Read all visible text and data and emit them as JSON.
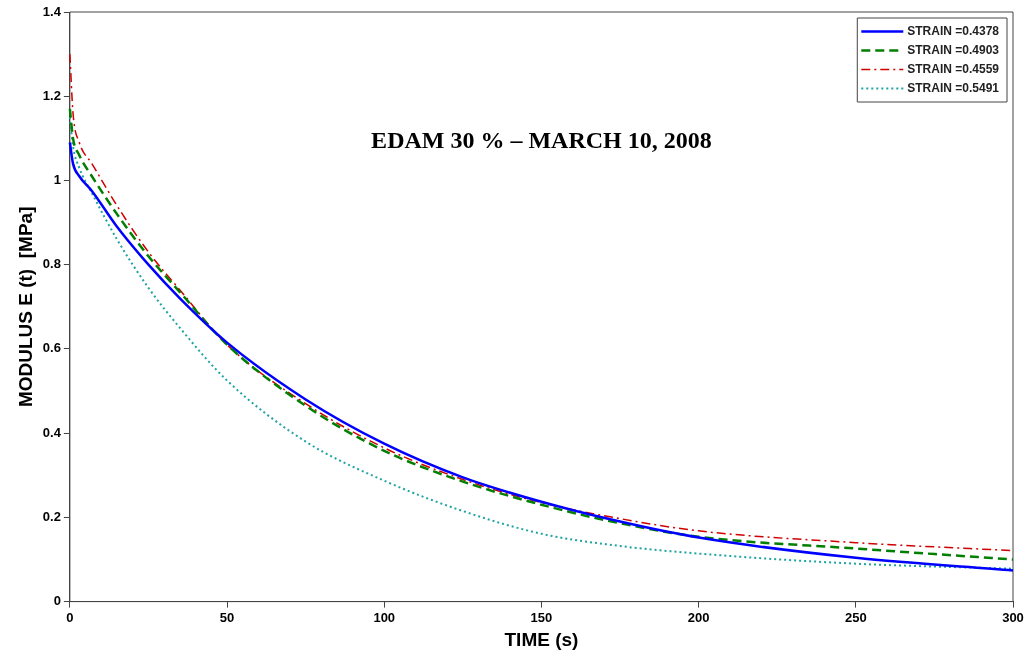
{
  "chart_data": {
    "type": "line",
    "title": "EDAM 30 % – MARCH 10, 2008",
    "xlabel": "TIME (s)",
    "ylabel": "MODULUS E (t)  [MPa]",
    "x": [
      0,
      1,
      3,
      7,
      15,
      25,
      35,
      50,
      75,
      100,
      125,
      150,
      175,
      200,
      250,
      300
    ],
    "xlim": [
      0,
      300
    ],
    "xticks": [
      0,
      50,
      100,
      150,
      200,
      250,
      300
    ],
    "ylim": [
      0,
      1.4
    ],
    "yticks": [
      0,
      0.2,
      0.4,
      0.6,
      0.8,
      1,
      1.2,
      1.4
    ],
    "grid": false,
    "legend": "top right",
    "marker": "none",
    "series": [
      {
        "name": "STRAIN =0.4378",
        "color": "#0000ff",
        "line_style": "solid",
        "values": [
          1.09,
          1.04,
          1.01,
          0.975,
          0.89,
          0.8,
          0.72,
          0.615,
          0.48,
          0.375,
          0.295,
          0.237,
          0.19,
          0.152,
          0.104,
          0.074
        ]
      },
      {
        "name": "STRAIN =0.4903",
        "color": "#007f00",
        "line_style": "dashed",
        "values": [
          1.17,
          1.1,
          1.06,
          1.01,
          0.92,
          0.82,
          0.735,
          0.61,
          0.465,
          0.358,
          0.285,
          0.23,
          0.186,
          0.154,
          0.126,
          0.1
        ]
      },
      {
        "name": "STRAIN =0.4559",
        "color": "#d00000",
        "line_style": "dashdot",
        "values": [
          1.3,
          1.16,
          1.09,
          1.04,
          0.94,
          0.83,
          0.74,
          0.61,
          0.47,
          0.365,
          0.29,
          0.235,
          0.197,
          0.168,
          0.14,
          0.121
        ]
      },
      {
        "name": "STRAIN =0.5491",
        "color": "#1fa3a3",
        "line_style": "dotted",
        "values": [
          1.15,
          1.08,
          1.03,
          0.97,
          0.86,
          0.745,
          0.65,
          0.525,
          0.38,
          0.287,
          0.215,
          0.161,
          0.132,
          0.114,
          0.09,
          0.078
        ]
      }
    ]
  }
}
